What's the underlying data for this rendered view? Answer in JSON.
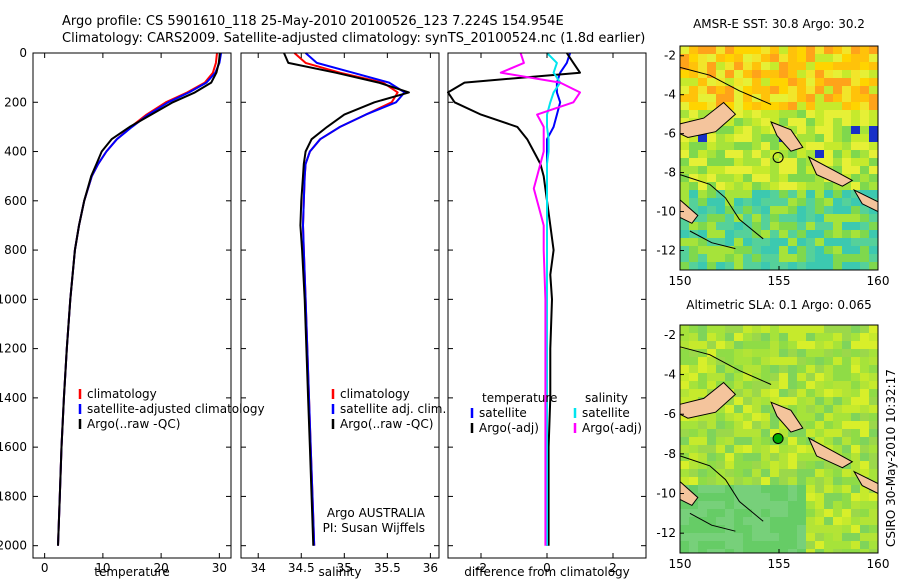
{
  "header": {
    "line1": "Argo profile: CS 5901610_118 25-May-2010 20100526_123 7.224S 154.954E",
    "line2": "Climatology: CARS2009. Satellite-adjusted climatology: synTS_20100524.nc (1.8d earlier)"
  },
  "side_credit": "CSIRO 30-May-2010 10:32:17",
  "colors": {
    "climatology": "#ff0000",
    "satellite": "#0000ff",
    "argo": "#000000",
    "sat_salinity": "#00e5ee",
    "argo_salinity": "#ff00ff",
    "land": "#f4c49c",
    "argo_marker": "#00aa00"
  },
  "chart_data": [
    {
      "id": "temperature",
      "type": "line",
      "xlabel": "temperature",
      "ylabel": "",
      "xlim": [
        -2,
        32
      ],
      "ylim": [
        2050,
        0
      ],
      "xticks": [
        0,
        10,
        20,
        30
      ],
      "yticks": [
        0,
        200,
        400,
        600,
        800,
        1000,
        1200,
        1400,
        1600,
        1800,
        2000
      ],
      "legend": {
        "location": "bottom-right",
        "items": [
          "climatology",
          "satellite-adjusted climatology",
          "Argo(..raw -QC)"
        ]
      },
      "series": [
        {
          "name": "climatology",
          "color": "#ff0000",
          "y": [
            0,
            40,
            80,
            120,
            160,
            200,
            250,
            300,
            350,
            400,
            450,
            500,
            600,
            700,
            800,
            1000,
            1200,
            1400,
            1600,
            1800,
            2000
          ],
          "x": [
            29.6,
            29.4,
            28.9,
            27.5,
            24.5,
            20.8,
            17.5,
            14.8,
            12.4,
            10.6,
            9.2,
            8.1,
            6.8,
            5.9,
            5.2,
            4.4,
            3.8,
            3.3,
            2.9,
            2.6,
            2.3
          ]
        },
        {
          "name": "satellite-adjusted climatology",
          "color": "#0000ff",
          "y": [
            0,
            40,
            80,
            120,
            160,
            200,
            250,
            300,
            350,
            400,
            450,
            500,
            600,
            700,
            800,
            1000,
            1200,
            1400,
            1600,
            1800,
            2000
          ],
          "x": [
            30.3,
            30.0,
            29.3,
            27.8,
            24.8,
            21.2,
            17.8,
            15.0,
            12.4,
            10.6,
            9.2,
            8.1,
            6.8,
            5.9,
            5.2,
            4.4,
            3.8,
            3.3,
            2.9,
            2.6,
            2.3
          ]
        },
        {
          "name": "Argo(..raw -QC)",
          "color": "#000000",
          "y": [
            0,
            40,
            80,
            120,
            160,
            200,
            250,
            300,
            350,
            400,
            450,
            500,
            600,
            700,
            800,
            1000,
            1200,
            1400,
            1600,
            1800,
            2000
          ],
          "x": [
            30.1,
            29.9,
            29.5,
            28.6,
            25.8,
            22.0,
            18.3,
            14.6,
            11.5,
            9.8,
            8.9,
            8.0,
            6.8,
            5.9,
            5.2,
            4.4,
            3.8,
            3.3,
            2.9,
            2.6,
            2.3
          ]
        }
      ]
    },
    {
      "id": "salinity",
      "type": "line",
      "xlabel": "salinity",
      "ylabel": "",
      "xlim": [
        33.8,
        36.1
      ],
      "ylim": [
        2050,
        0
      ],
      "xticks": [
        34,
        34.5,
        35,
        35.5,
        36
      ],
      "legend": {
        "location": "bottom-right",
        "items": [
          "climatology",
          "satellite adj. clim.",
          "Argo(..raw -QC)"
        ]
      },
      "annotation": [
        "Argo AUSTRALIA",
        "PI: Susan Wijffels"
      ],
      "series": [
        {
          "name": "climatology",
          "color": "#ff0000",
          "y": [
            0,
            40,
            80,
            120,
            160,
            200,
            250,
            300,
            350,
            400,
            450,
            500,
            600,
            700,
            800,
            1000,
            1200,
            1400,
            1600,
            1800,
            2000
          ],
          "x": [
            34.42,
            34.55,
            34.95,
            35.45,
            35.62,
            35.55,
            35.25,
            34.95,
            34.72,
            34.6,
            34.55,
            34.54,
            34.53,
            34.52,
            34.53,
            34.55,
            34.57,
            34.59,
            34.61,
            34.63,
            34.65
          ]
        },
        {
          "name": "satellite adj. clim.",
          "color": "#0000ff",
          "y": [
            0,
            40,
            80,
            120,
            160,
            200,
            250,
            300,
            350,
            400,
            450,
            500,
            600,
            700,
            800,
            1000,
            1200,
            1400,
            1600,
            1800,
            2000
          ],
          "x": [
            34.55,
            34.68,
            35.1,
            35.52,
            35.7,
            35.6,
            35.25,
            34.95,
            34.72,
            34.6,
            34.55,
            34.54,
            34.53,
            34.52,
            34.53,
            34.55,
            34.57,
            34.59,
            34.61,
            34.63,
            34.65
          ]
        },
        {
          "name": "Argo(..raw -QC)",
          "color": "#000000",
          "y": [
            0,
            40,
            80,
            120,
            160,
            200,
            250,
            300,
            350,
            400,
            450,
            500,
            600,
            700,
            800,
            1000,
            1200,
            1400,
            1600,
            1800,
            2000
          ],
          "x": [
            34.3,
            34.35,
            34.9,
            35.4,
            35.75,
            35.35,
            35.0,
            34.8,
            34.62,
            34.55,
            34.53,
            34.52,
            34.5,
            34.49,
            34.51,
            34.54,
            34.56,
            34.58,
            34.6,
            34.62,
            34.64
          ]
        }
      ]
    },
    {
      "id": "difference",
      "type": "line",
      "xlabel": "difference from climatology",
      "ylabel": "",
      "xlim": [
        -3,
        3
      ],
      "ylim": [
        2050,
        0
      ],
      "xticks": [
        -2,
        0,
        2
      ],
      "legend": {
        "location": "bottom",
        "groups": [
          {
            "title": "temperature",
            "items": [
              "satellite",
              "Argo(-adj)"
            ]
          },
          {
            "title": "salinity",
            "items": [
              "satellite",
              "Argo(-adj)"
            ]
          }
        ]
      },
      "series": [
        {
          "name": "temperature satellite",
          "color": "#0000ff",
          "y": [
            0,
            40,
            80,
            120,
            160,
            200,
            250,
            300,
            350,
            400,
            450,
            500,
            600,
            800,
            1000,
            1200,
            1400,
            1600,
            1800,
            2000
          ],
          "x": [
            0.7,
            0.6,
            0.4,
            0.3,
            0.3,
            0.4,
            0.3,
            0.2,
            0.0,
            0.0,
            0.0,
            0.0,
            0.0,
            0.0,
            0.0,
            0.0,
            0.0,
            0.0,
            0.0,
            0.0
          ]
        },
        {
          "name": "temperature Argo(-adj)",
          "color": "#000000",
          "y": [
            0,
            40,
            80,
            120,
            160,
            200,
            250,
            300,
            350,
            400,
            450,
            500,
            600,
            700,
            800,
            900,
            1000,
            1200,
            1400,
            1600,
            1800,
            2000
          ],
          "x": [
            0.6,
            0.8,
            1.0,
            -2.5,
            -3.0,
            -2.8,
            -2.0,
            -0.9,
            -0.6,
            -0.4,
            -0.2,
            -0.1,
            0.0,
            0.1,
            0.2,
            0.1,
            0.15,
            0.1,
            0.1,
            0.05,
            0.05,
            0.05
          ]
        },
        {
          "name": "salinity satellite",
          "color": "#00e5ee",
          "y": [
            0,
            40,
            80,
            120,
            160,
            200,
            250,
            300,
            350,
            400,
            450,
            500,
            600,
            800,
            1000,
            1200,
            1400,
            1600,
            1800,
            2000
          ],
          "x": [
            0.0,
            0.3,
            0.2,
            0.4,
            0.2,
            0.1,
            0.0,
            0.0,
            0.05,
            0.05,
            0.0,
            0.0,
            0.0,
            0.0,
            0.0,
            0.0,
            0.0,
            0.0,
            0.0,
            0.0
          ]
        },
        {
          "name": "salinity Argo(-adj)",
          "color": "#ff00ff",
          "y": [
            0,
            40,
            80,
            120,
            160,
            200,
            250,
            300,
            350,
            400,
            450,
            500,
            550,
            600,
            700,
            800,
            1000,
            1200,
            1400,
            1600,
            1800,
            2000
          ],
          "x": [
            -0.8,
            -0.7,
            -1.4,
            0.4,
            1.0,
            0.8,
            -0.3,
            -0.1,
            -0.1,
            -0.1,
            -0.2,
            -0.3,
            -0.4,
            -0.3,
            -0.1,
            -0.1,
            -0.05,
            -0.05,
            -0.05,
            -0.05,
            -0.05,
            -0.05
          ]
        }
      ]
    },
    {
      "id": "sst-map",
      "type": "heatmap",
      "title": "AMSR-E SST: 30.8 Argo: 30.2",
      "xlim": [
        150,
        160
      ],
      "ylim": [
        -13,
        -1.5
      ],
      "xticks": [
        150,
        155,
        160
      ],
      "yticks": [
        -2,
        -4,
        -6,
        -8,
        -10,
        -12
      ],
      "marker": {
        "lon": 154.954,
        "lat": -7.224
      }
    },
    {
      "id": "sla-map",
      "type": "heatmap",
      "title": "Altimetric SLA: 0.1 Argo: 0.065",
      "xlim": [
        150,
        160
      ],
      "ylim": [
        -13,
        -1.5
      ],
      "xticks": [
        150,
        155,
        160
      ],
      "yticks": [
        -2,
        -4,
        -6,
        -8,
        -10,
        -12
      ],
      "marker": {
        "lon": 154.954,
        "lat": -7.224
      }
    }
  ]
}
